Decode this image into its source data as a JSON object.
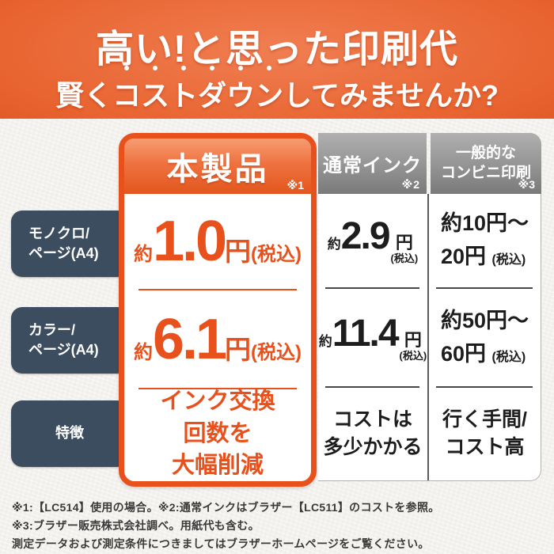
{
  "colors": {
    "accent_orange": "#e8511c",
    "banner_orange": "#e8632f",
    "header_gray": "#8e8e8e",
    "label_slate": "#3d4d60",
    "text_black": "#1d1d1d",
    "footnote_gray": "#3a3a3a",
    "page_background": "#f4f2ee"
  },
  "banner": {
    "line1": "高い!と思った印刷代",
    "line2_prefix": "賢く",
    "line2_emphasis": "コストダウン",
    "line2_suffix": "してみませんか?"
  },
  "table": {
    "columns": [
      {
        "title": "本製品",
        "note": "※1"
      },
      {
        "title": "通常インク",
        "note": "※2"
      },
      {
        "title_line1": "一般的な",
        "title_line2": "コンビニ印刷",
        "note": "※3"
      }
    ],
    "row_labels": [
      {
        "line1": "モノクロ/",
        "line2": "ページ(A4)"
      },
      {
        "line1": "カラー/",
        "line2": "ページ(A4)"
      },
      {
        "label": "特徴"
      }
    ],
    "product": {
      "mono": {
        "approx": "約",
        "value": "1.0",
        "unit": "円",
        "tax": "(税込)"
      },
      "color": {
        "approx": "約",
        "value": "6.1",
        "unit": "円",
        "tax": "(税込)"
      },
      "feature": {
        "line1": "インク交換",
        "line2": "回数を",
        "line3": "大幅削減"
      }
    },
    "normal_ink": {
      "mono": {
        "approx": "約",
        "value": "2.9",
        "unit": "円",
        "tax": "(税込)"
      },
      "color": {
        "approx": "約",
        "value": "11.4",
        "unit": "円",
        "tax": "(税込)"
      },
      "feature": {
        "line1": "コストは",
        "line2": "多少かかる"
      }
    },
    "convenience": {
      "mono": {
        "line1": "約10円〜",
        "line2": "20円",
        "tax": "(税込)"
      },
      "color": {
        "line1": "約50円〜",
        "line2": "60円",
        "tax": "(税込)"
      },
      "feature": {
        "line1": "行く手間/",
        "line2": "コスト高"
      }
    }
  },
  "footnotes": [
    "※1:【LC514】使用の場合。※2:通常インクはブラザー【LC511】のコストを参照。",
    "※3:ブラザー販売株式会社調べ。用紙代も含む。",
    "測定データおよび測定条件につきましてはブラザーホームページをご覧ください。"
  ],
  "chart_data": {
    "type": "table",
    "title": "高い!と思った印刷代 賢くコストダウンしてみませんか?",
    "columns": [
      "本製品 ※1",
      "通常インク ※2",
      "一般的なコンビニ印刷 ※3"
    ],
    "rows": [
      {
        "label": "モノクロ/ページ(A4)",
        "values": [
          "約1.0円(税込)",
          "約2.9円(税込)",
          "約10円〜20円(税込)"
        ]
      },
      {
        "label": "カラー/ページ(A4)",
        "values": [
          "約6.1円(税込)",
          "約11.4円(税込)",
          "約50円〜60円(税込)"
        ]
      },
      {
        "label": "特徴",
        "values": [
          "インク交換回数を大幅削減",
          "コストは多少かかる",
          "行く手間/コスト高"
        ]
      }
    ],
    "footnotes": [
      "※1:【LC514】使用の場合。※2:通常インクはブラザー【LC511】のコストを参照。",
      "※3:ブラザー販売株式会社調べ。用紙代も含む。",
      "測定データおよび測定条件につきましてはブラザーホームページをご覧ください。"
    ]
  }
}
